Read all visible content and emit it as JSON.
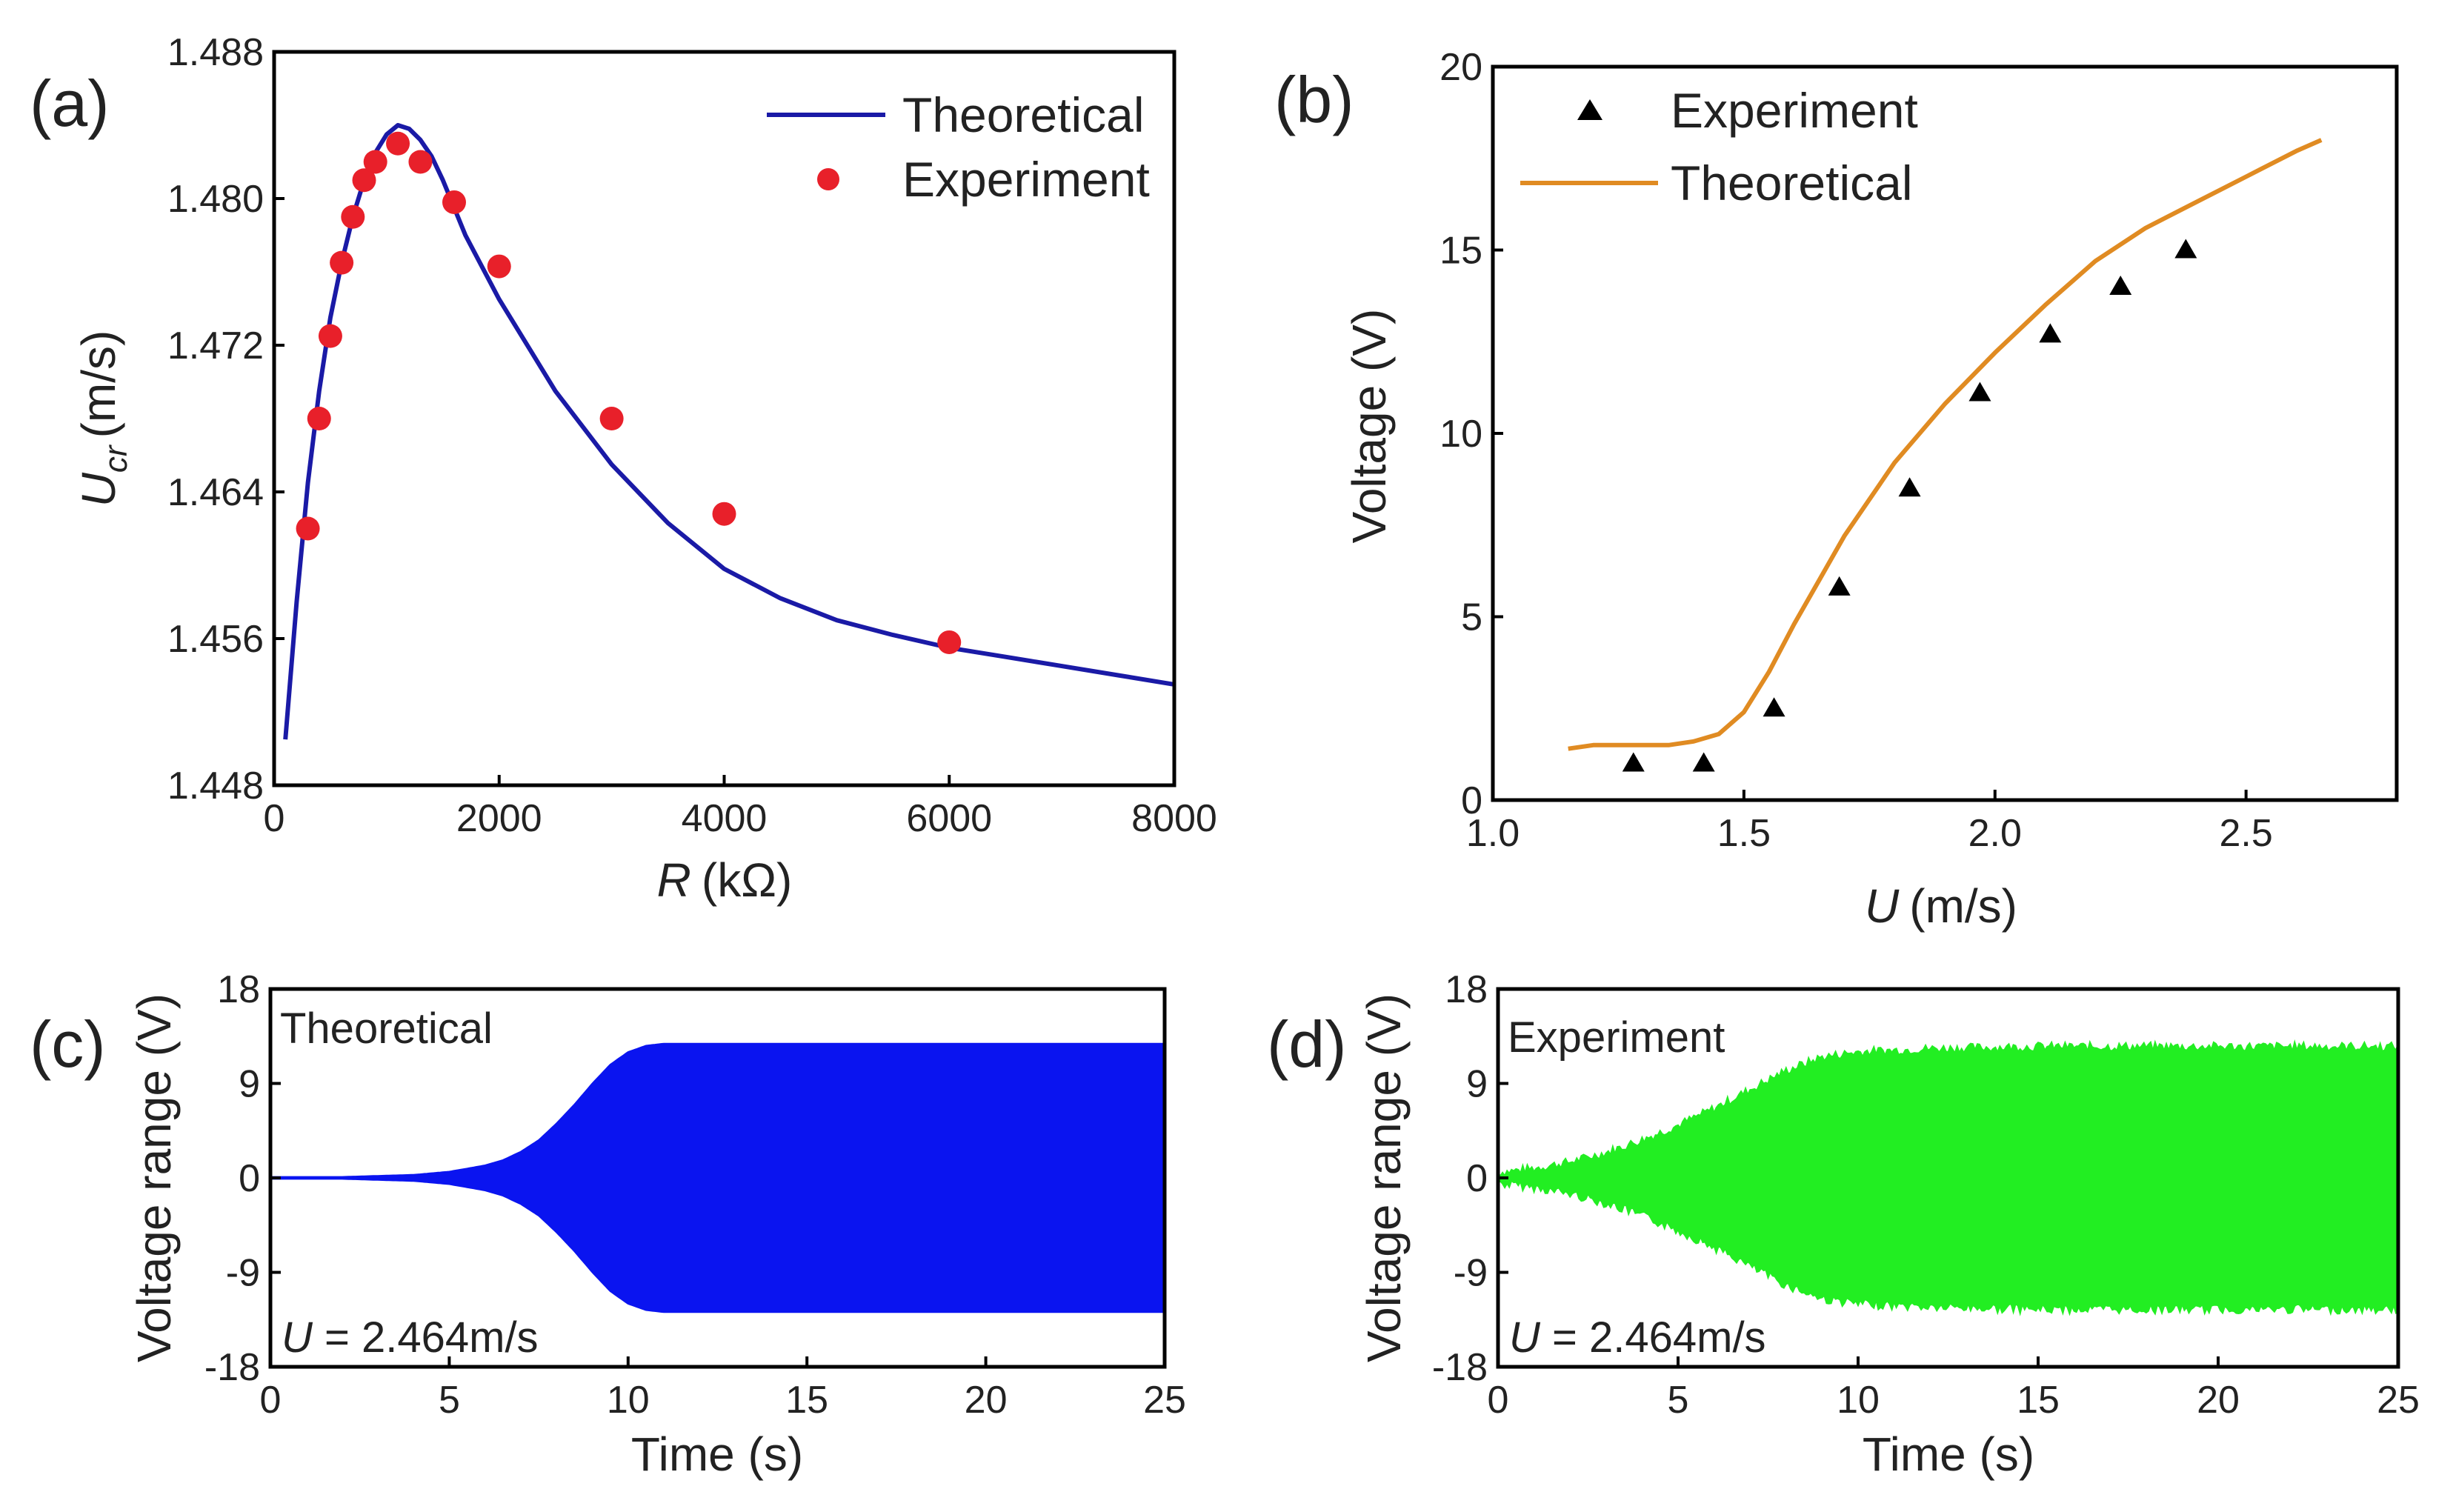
{
  "chart_data": [
    {
      "panel": "(a)",
      "type": "line",
      "xlabel_var": "R",
      "xlabel_unit": "(kΩ)",
      "ylabel_var": "U",
      "ylabel_sub": "cr",
      "ylabel_unit": "(m/s)",
      "xlim": [
        0,
        8000
      ],
      "ylim": [
        1.448,
        1.488
      ],
      "xticks": [
        0,
        2000,
        4000,
        6000,
        8000
      ],
      "xtick_labels": [
        "0",
        "2000",
        "4000",
        "6000",
        "8000"
      ],
      "yticks": [
        1.448,
        1.456,
        1.464,
        1.472,
        1.48,
        1.488
      ],
      "ytick_labels": [
        "1.448",
        "1.456",
        "1.464",
        "1.472",
        "1.480",
        "1.488"
      ],
      "series": [
        {
          "name": "Theoretical",
          "kind": "line",
          "color": "#1a1aa6",
          "x": [
            100,
            200,
            300,
            400,
            500,
            600,
            700,
            800,
            900,
            1000,
            1100,
            1200,
            1300,
            1400,
            1500,
            1700,
            2000,
            2500,
            3000,
            3500,
            4000,
            4500,
            5000,
            5500,
            6000,
            6500,
            7000,
            7500,
            8000
          ],
          "y": [
            1.4505,
            1.458,
            1.4645,
            1.4695,
            1.4735,
            1.4765,
            1.479,
            1.481,
            1.4825,
            1.4835,
            1.484,
            1.4838,
            1.4832,
            1.4823,
            1.481,
            1.478,
            1.4745,
            1.4695,
            1.4655,
            1.4623,
            1.4598,
            1.4582,
            1.457,
            1.4562,
            1.4555,
            1.455,
            1.4545,
            1.454,
            1.4535
          ]
        },
        {
          "name": "Experiment",
          "kind": "scatter",
          "color": "#e8202a",
          "x": [
            300,
            400,
            500,
            600,
            700,
            800,
            900,
            1100,
            1300,
            1600,
            2000,
            3000,
            4000,
            6000
          ],
          "y": [
            1.462,
            1.468,
            1.4725,
            1.4765,
            1.479,
            1.481,
            1.482,
            1.483,
            1.482,
            1.4798,
            1.4763,
            1.468,
            1.4628,
            1.4558
          ]
        }
      ],
      "legend": [
        "Theoretical",
        "Experiment"
      ]
    },
    {
      "panel": "(b)",
      "type": "line",
      "xlabel_var": "U",
      "xlabel_unit": "(m/s)",
      "ylabel": "Voltage (V)",
      "xlim": [
        1.0,
        2.8
      ],
      "ylim": [
        0,
        20
      ],
      "xticks": [
        1.0,
        1.5,
        2.0,
        2.5
      ],
      "xtick_labels": [
        "1.0",
        "1.5",
        "2.0",
        "2.5"
      ],
      "yticks": [
        0,
        5,
        10,
        15,
        20
      ],
      "ytick_labels": [
        "0",
        "5",
        "10",
        "15",
        "20"
      ],
      "series": [
        {
          "name": "Experiment",
          "kind": "scatter",
          "marker": "triangle",
          "color": "#000000",
          "x": [
            1.28,
            1.42,
            1.56,
            1.69,
            1.83,
            1.97,
            2.11,
            2.25,
            2.38
          ],
          "y": [
            1.0,
            1.0,
            2.5,
            5.8,
            8.5,
            11.1,
            12.7,
            14.0,
            15.0
          ]
        },
        {
          "name": "Theoretical",
          "kind": "line",
          "color": "#e08b22",
          "x": [
            1.15,
            1.2,
            1.3,
            1.35,
            1.4,
            1.45,
            1.5,
            1.55,
            1.6,
            1.65,
            1.7,
            1.8,
            1.9,
            2.0,
            2.1,
            2.2,
            2.3,
            2.4,
            2.5,
            2.6,
            2.65
          ],
          "y": [
            1.4,
            1.5,
            1.5,
            1.5,
            1.6,
            1.8,
            2.4,
            3.5,
            4.8,
            6.0,
            7.2,
            9.2,
            10.8,
            12.2,
            13.5,
            14.7,
            15.6,
            16.3,
            17.0,
            17.7,
            18.0
          ]
        }
      ],
      "legend": [
        "Experiment",
        "Theoretical"
      ]
    },
    {
      "panel": "(c)",
      "type": "area",
      "title_inset": "Theoretical",
      "annotation_var": "U",
      "annotation_val": " = 2.464m/s",
      "xlabel": "Time (s)",
      "ylabel": "Voltage range (V)",
      "xlim": [
        0,
        25
      ],
      "ylim": [
        -18,
        18
      ],
      "xticks": [
        0,
        5,
        10,
        15,
        20,
        25
      ],
      "xtick_labels": [
        "0",
        "5",
        "10",
        "15",
        "20",
        "25"
      ],
      "yticks": [
        -18,
        -9,
        0,
        9,
        18
      ],
      "ytick_labels": [
        "-18",
        "-9",
        "0",
        "9",
        "18"
      ],
      "color": "#0a14f0",
      "envelope": {
        "t": [
          0,
          2,
          3,
          4,
          5,
          6,
          6.5,
          7,
          7.5,
          8,
          8.5,
          9,
          9.5,
          10,
          10.5,
          11,
          25
        ],
        "amp": [
          0.1,
          0.1,
          0.2,
          0.3,
          0.6,
          1.2,
          1.7,
          2.5,
          3.6,
          5.2,
          7.0,
          9.0,
          10.8,
          12.0,
          12.6,
          12.8,
          12.8
        ]
      }
    },
    {
      "panel": "(d)",
      "type": "area",
      "title_inset": "Experiment",
      "annotation_var": "U",
      "annotation_val": " = 2.464m/s",
      "xlabel": "Time (s)",
      "ylabel": "Voltage range (V)",
      "xlim": [
        0,
        25
      ],
      "ylim": [
        -18,
        18
      ],
      "xticks": [
        0,
        5,
        10,
        15,
        20,
        25
      ],
      "xtick_labels": [
        "0",
        "5",
        "10",
        "15",
        "20",
        "25"
      ],
      "yticks": [
        -18,
        -9,
        0,
        9,
        18
      ],
      "ytick_labels": [
        "-18",
        "-9",
        "0",
        "9",
        "18"
      ],
      "color": "#22ee22",
      "envelope": {
        "t": [
          0,
          1,
          2,
          3,
          4,
          5,
          6,
          7,
          8,
          9,
          10,
          12,
          15,
          20,
          25
        ],
        "amp": [
          0.5,
          0.9,
          1.5,
          2.4,
          3.6,
          5.0,
          6.6,
          8.4,
          10.2,
          11.5,
          12.0,
          12.3,
          12.5,
          12.5,
          12.5
        ]
      }
    }
  ]
}
